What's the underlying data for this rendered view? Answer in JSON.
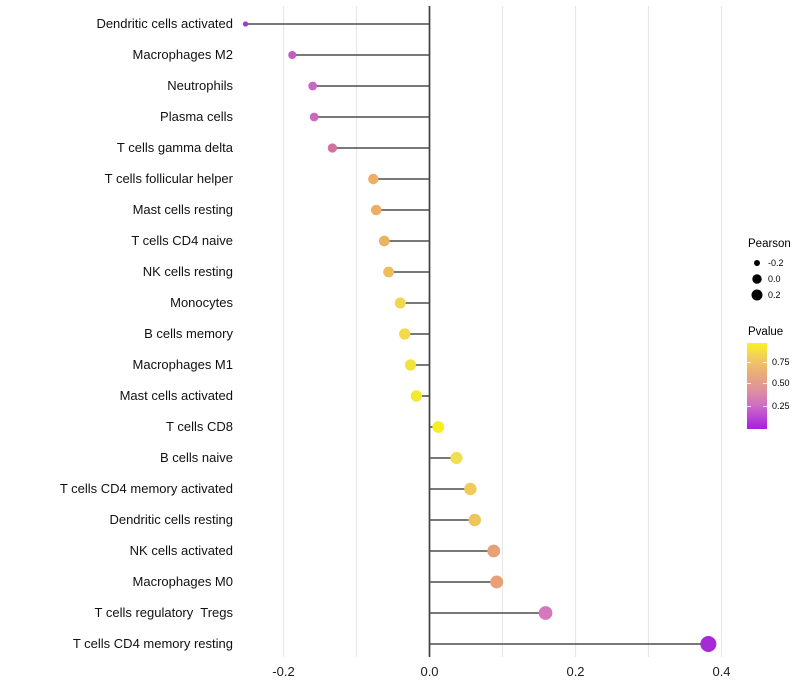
{
  "chart_data": {
    "type": "scatter",
    "subtype": "lollipop",
    "title": "",
    "xlabel": "",
    "ylabel": "",
    "x_tick_labels": [
      "-0.2",
      "0.0",
      "0.2",
      "0.4"
    ],
    "x_ticks": [
      -0.2,
      0.0,
      0.2,
      0.4
    ],
    "xlim": [
      -0.27,
      0.5
    ],
    "grid": "vertical gridlines at 0.1 steps, no horizontal gridlines",
    "zero_line_at_x": 0.0,
    "points": [
      {
        "label": "Dendritic cells activated",
        "pearson": -0.252,
        "pvalue": 0.1,
        "color": "#9b3fc8"
      },
      {
        "label": "Macrophages M2",
        "pearson": -0.188,
        "pvalue": 0.2,
        "color": "#c45cc0"
      },
      {
        "label": "Neutrophils",
        "pearson": -0.16,
        "pvalue": 0.23,
        "color": "#c967c0"
      },
      {
        "label": "Plasma cells",
        "pearson": -0.158,
        "pvalue": 0.24,
        "color": "#cb69c2"
      },
      {
        "label": "T cells gamma delta",
        "pearson": -0.133,
        "pvalue": 0.32,
        "color": "#d1729f"
      },
      {
        "label": "T cells follicular helper",
        "pearson": -0.077,
        "pvalue": 0.52,
        "color": "#eeae66"
      },
      {
        "label": "Mast cells resting",
        "pearson": -0.073,
        "pvalue": 0.52,
        "color": "#eead65"
      },
      {
        "label": "T cells CD4 naive",
        "pearson": -0.062,
        "pvalue": 0.56,
        "color": "#ecb35f"
      },
      {
        "label": "NK cells resting",
        "pearson": -0.056,
        "pvalue": 0.6,
        "color": "#edbd5d"
      },
      {
        "label": "Monocytes",
        "pearson": -0.04,
        "pvalue": 0.7,
        "color": "#f1d74b"
      },
      {
        "label": "B cells memory",
        "pearson": -0.034,
        "pvalue": 0.71,
        "color": "#f2da48"
      },
      {
        "label": "Macrophages M1",
        "pearson": -0.026,
        "pvalue": 0.76,
        "color": "#f3e23c"
      },
      {
        "label": "Mast cells activated",
        "pearson": -0.018,
        "pvalue": 0.82,
        "color": "#f4ea2c"
      },
      {
        "label": "T cells CD8",
        "pearson": 0.012,
        "pvalue": 0.87,
        "color": "#f5ef1e"
      },
      {
        "label": "B cells naive",
        "pearson": 0.037,
        "pvalue": 0.72,
        "color": "#f2de4e"
      },
      {
        "label": "T cells CD4 memory activated",
        "pearson": 0.056,
        "pvalue": 0.63,
        "color": "#efcb59"
      },
      {
        "label": "Dendritic cells resting",
        "pearson": 0.062,
        "pvalue": 0.61,
        "color": "#eec65e"
      },
      {
        "label": "NK cells activated",
        "pearson": 0.088,
        "pvalue": 0.48,
        "color": "#e9a077"
      },
      {
        "label": "Macrophages M0",
        "pearson": 0.092,
        "pvalue": 0.47,
        "color": "#e8a077"
      },
      {
        "label": "T cells regulatory  Tregs",
        "pearson": 0.159,
        "pvalue": 0.27,
        "color": "#d678bd"
      },
      {
        "label": "T cells CD4 memory resting",
        "pearson": 0.382,
        "pvalue": 0.02,
        "color": "#a62bd6"
      }
    ],
    "legend": {
      "position": "right",
      "size": {
        "title": "Pearson",
        "items": [
          {
            "label": "-0.2"
          },
          {
            "label": "0.0"
          },
          {
            "label": "0.2"
          }
        ],
        "dot_color": "#000000"
      },
      "color": {
        "title": "Pvalue",
        "tick_labels": [
          "0.75",
          "0.50",
          "0.25"
        ],
        "gradient_stops": [
          "#faf31f",
          "#f2ce5c",
          "#e9a87e",
          "#de8f9f",
          "#ce6ec4",
          "#a81fe2"
        ]
      }
    },
    "style": {
      "stem_color": "#4d4d4d",
      "zero_line_color": "#3f3f3f",
      "gridline_color": "#e8e8e8",
      "background": "#ffffff"
    }
  }
}
